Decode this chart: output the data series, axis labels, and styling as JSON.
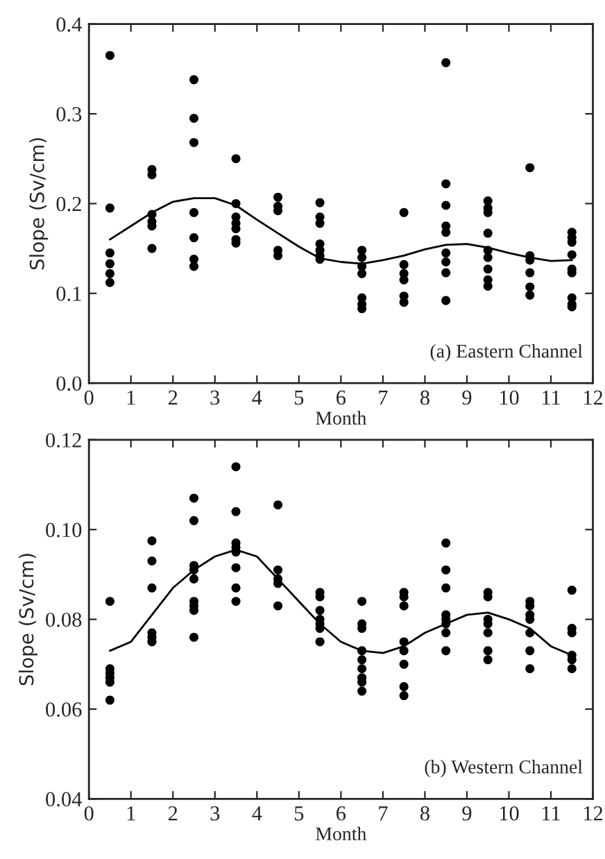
{
  "chart_data": [
    {
      "type": "scatter",
      "xlabel": "Month",
      "ylabel": "Slope (Sv/cm)",
      "annotations": [
        "(a) Eastern Channel"
      ],
      "xlim": [
        0,
        12
      ],
      "xticks": [
        0,
        1,
        2,
        3,
        4,
        5,
        6,
        7,
        8,
        9,
        10,
        11,
        12
      ],
      "ylim": [
        0,
        0.4
      ],
      "yticks": [
        {
          "value": 0,
          "label": "0.0"
        },
        0.1,
        0.2,
        0.3,
        0.4
      ],
      "grid": false,
      "legend": false,
      "series": [
        {
          "marker": "circle",
          "color": "#000000",
          "x": [
            0.5,
            0.5,
            0.5,
            0.5,
            0.5,
            0.5,
            1.5,
            1.5,
            1.5,
            1.5,
            1.5,
            1.5,
            2.5,
            2.5,
            2.5,
            2.5,
            2.5,
            2.5,
            2.5,
            3.5,
            3.5,
            3.5,
            3.5,
            3.5,
            3.5,
            3.5,
            4.5,
            4.5,
            4.5,
            4.5,
            4.5,
            5.5,
            5.5,
            5.5,
            5.5,
            5.5,
            5.5,
            5.5,
            6.5,
            6.5,
            6.5,
            6.5,
            6.5,
            6.5,
            6.5,
            7.5,
            7.5,
            7.5,
            7.5,
            7.5,
            7.5,
            8.5,
            8.5,
            8.5,
            8.5,
            8.5,
            8.5,
            8.5,
            8.5,
            8.5,
            9.5,
            9.5,
            9.5,
            9.5,
            9.5,
            9.5,
            9.5,
            9.5,
            9.5,
            10.5,
            10.5,
            10.5,
            10.5,
            10.5,
            10.5,
            11.5,
            11.5,
            11.5,
            11.5,
            11.5,
            11.5,
            11.5,
            11.5,
            11.5
          ],
          "values": [
            0.365,
            0.195,
            0.145,
            0.133,
            0.122,
            0.112,
            0.238,
            0.232,
            0.188,
            0.18,
            0.175,
            0.15,
            0.338,
            0.295,
            0.268,
            0.19,
            0.162,
            0.138,
            0.13,
            0.25,
            0.2,
            0.185,
            0.178,
            0.172,
            0.16,
            0.156,
            0.207,
            0.197,
            0.192,
            0.148,
            0.142,
            0.201,
            0.185,
            0.178,
            0.155,
            0.148,
            0.142,
            0.138,
            0.148,
            0.14,
            0.13,
            0.122,
            0.095,
            0.088,
            0.083,
            0.19,
            0.132,
            0.122,
            0.115,
            0.097,
            0.09,
            0.357,
            0.222,
            0.198,
            0.175,
            0.168,
            0.145,
            0.135,
            0.123,
            0.092,
            0.203,
            0.195,
            0.19,
            0.167,
            0.148,
            0.14,
            0.127,
            0.115,
            0.108,
            0.24,
            0.142,
            0.137,
            0.123,
            0.107,
            0.098,
            0.168,
            0.162,
            0.157,
            0.143,
            0.127,
            0.123,
            0.095,
            0.088,
            0.085
          ]
        },
        {
          "type": "line",
          "color": "#000000",
          "line_style": "solid",
          "x": [
            0.5,
            1,
            1.5,
            2,
            2.5,
            3,
            3.5,
            4,
            4.5,
            5,
            5.5,
            6,
            6.5,
            7,
            7.5,
            8,
            8.5,
            9,
            9.5,
            10,
            10.5,
            11,
            11.5
          ],
          "values": [
            0.16,
            0.175,
            0.19,
            0.202,
            0.206,
            0.206,
            0.198,
            0.182,
            0.167,
            0.152,
            0.139,
            0.135,
            0.133,
            0.137,
            0.142,
            0.149,
            0.154,
            0.155,
            0.151,
            0.145,
            0.14,
            0.136,
            0.137
          ]
        }
      ]
    },
    {
      "type": "scatter",
      "xlabel": "Month",
      "ylabel": "Slope (Sv/cm)",
      "annotations": [
        "(b) Western Channel"
      ],
      "xlim": [
        0,
        12
      ],
      "xticks": [
        0,
        1,
        2,
        3,
        4,
        5,
        6,
        7,
        8,
        9,
        10,
        11,
        12
      ],
      "ylim": [
        0.04,
        0.12
      ],
      "yticks": [
        0.04,
        0.06,
        0.08,
        {
          "value": 0.1,
          "label": "0.10"
        },
        0.12
      ],
      "grid": false,
      "legend": false,
      "series": [
        {
          "marker": "circle",
          "color": "#000000",
          "x": [
            0.5,
            0.5,
            0.5,
            0.5,
            0.5,
            0.5,
            1.5,
            1.5,
            1.5,
            1.5,
            1.5,
            1.5,
            2.5,
            2.5,
            2.5,
            2.5,
            2.5,
            2.5,
            2.5,
            2.5,
            2.5,
            3.5,
            3.5,
            3.5,
            3.5,
            3.5,
            3.5,
            3.5,
            3.5,
            4.5,
            4.5,
            4.5,
            4.5,
            4.5,
            5.5,
            5.5,
            5.5,
            5.5,
            5.5,
            5.5,
            5.5,
            6.5,
            6.5,
            6.5,
            6.5,
            6.5,
            6.5,
            6.5,
            6.5,
            6.5,
            7.5,
            7.5,
            7.5,
            7.5,
            7.5,
            7.5,
            7.5,
            7.5,
            8.5,
            8.5,
            8.5,
            8.5,
            8.5,
            8.5,
            8.5,
            8.5,
            9.5,
            9.5,
            9.5,
            9.5,
            9.5,
            9.5,
            9.5,
            10.5,
            10.5,
            10.5,
            10.5,
            10.5,
            10.5,
            10.5,
            11.5,
            11.5,
            11.5,
            11.5,
            11.5,
            11.5
          ],
          "values": [
            0.084,
            0.069,
            0.068,
            0.067,
            0.066,
            0.062,
            0.0975,
            0.093,
            0.087,
            0.077,
            0.076,
            0.075,
            0.107,
            0.102,
            0.092,
            0.091,
            0.089,
            0.084,
            0.083,
            0.082,
            0.076,
            0.114,
            0.104,
            0.097,
            0.096,
            0.095,
            0.0915,
            0.087,
            0.084,
            0.1055,
            0.091,
            0.089,
            0.088,
            0.083,
            0.086,
            0.085,
            0.082,
            0.08,
            0.079,
            0.078,
            0.075,
            0.084,
            0.079,
            0.078,
            0.073,
            0.071,
            0.069,
            0.067,
            0.066,
            0.064,
            0.086,
            0.085,
            0.083,
            0.075,
            0.073,
            0.07,
            0.065,
            0.063,
            0.097,
            0.091,
            0.087,
            0.081,
            0.08,
            0.079,
            0.077,
            0.073,
            0.086,
            0.085,
            0.08,
            0.079,
            0.077,
            0.073,
            0.071,
            0.084,
            0.083,
            0.081,
            0.08,
            0.077,
            0.073,
            0.069,
            0.0865,
            0.078,
            0.077,
            0.072,
            0.071,
            0.069
          ]
        },
        {
          "type": "line",
          "color": "#000000",
          "line_style": "solid",
          "x": [
            0.5,
            1,
            1.5,
            2,
            2.5,
            3,
            3.5,
            4,
            4.5,
            5,
            5.5,
            6,
            6.5,
            7,
            7.5,
            8,
            8.5,
            9,
            9.5,
            10,
            10.5,
            11,
            11.5
          ],
          "values": [
            0.073,
            0.075,
            0.081,
            0.087,
            0.091,
            0.094,
            0.0955,
            0.094,
            0.089,
            0.084,
            0.079,
            0.075,
            0.073,
            0.0725,
            0.074,
            0.077,
            0.079,
            0.081,
            0.0815,
            0.08,
            0.078,
            0.074,
            0.072
          ]
        }
      ]
    }
  ]
}
